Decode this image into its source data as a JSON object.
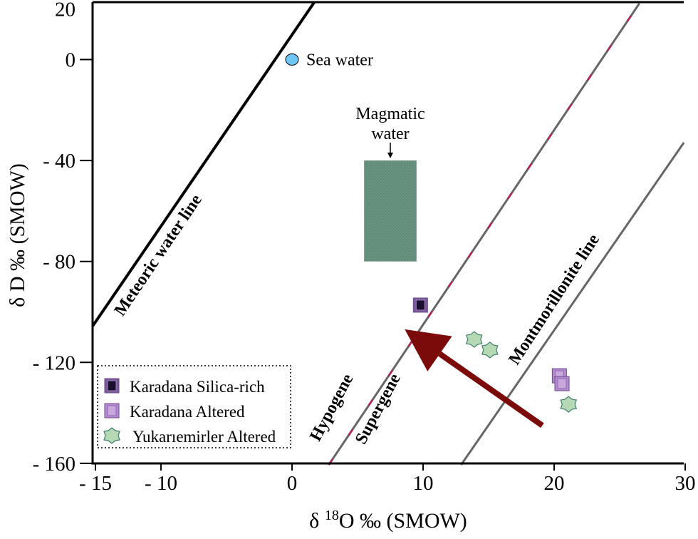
{
  "chart_data": {
    "type": "scatter",
    "xlabel": "δ ¹⁸O ‰ (SMOW)",
    "ylabel": "δ D ‰ (SMOW)",
    "xlabel_parts": {
      "pre": "δ ",
      "sup": "18",
      "post": "O ‰ (SMOW)"
    },
    "xlim": [
      -15,
      30
    ],
    "ylim": [
      -160,
      22.7
    ],
    "xticks": [
      {
        "v": -15,
        "label": "- 15"
      },
      {
        "v": -10,
        "label": "- 10"
      },
      {
        "v": 0,
        "label": "0"
      },
      {
        "v": 10,
        "label": "10"
      },
      {
        "v": 20,
        "label": "20"
      },
      {
        "v": 30,
        "label": "30"
      }
    ],
    "yticks": [
      {
        "v": 20,
        "label": "20"
      },
      {
        "v": 0,
        "label": "0"
      },
      {
        "v": -40,
        "label": "- 40"
      },
      {
        "v": -80,
        "label": "- 80"
      },
      {
        "v": -120,
        "label": "- 120"
      },
      {
        "v": -160,
        "label": "- 160"
      }
    ],
    "lines": [
      {
        "name": "Meteoric water line",
        "points": [
          [
            -15.2,
            -105.5
          ],
          [
            1.7,
            22.7
          ]
        ],
        "color": "#000000"
      },
      {
        "name": "Hypogene / Supergene",
        "labels": [
          "Hypogene",
          "Supergene"
        ],
        "points": [
          [
            2.8,
            -160.6
          ],
          [
            26.5,
            22.2
          ]
        ],
        "color": "#666666",
        "dash_color": "#c2185b"
      },
      {
        "name": "Montmorillonite line",
        "points": [
          [
            12.9,
            -160.6
          ],
          [
            29.9,
            -32.9
          ]
        ],
        "color": "#666666"
      }
    ],
    "sea_water": {
      "label": "Sea water",
      "x": 0,
      "y": 0,
      "color": "#6ec6f5"
    },
    "magmatic_water": {
      "label_line1": "Magmatic",
      "label_line2": "water",
      "x": [
        5.5,
        9.5
      ],
      "y": [
        -80,
        -40
      ],
      "color": "#5f8a78"
    },
    "arrow": {
      "from": [
        19.1,
        -145
      ],
      "to": [
        8.6,
        -106.9
      ],
      "color": "#7b0a0a"
    },
    "series": [
      {
        "name": "Karadana Silica-rich",
        "marker": "square-dark",
        "color": "#1a0f2e",
        "points": [
          [
            9.8,
            -97.3
          ]
        ]
      },
      {
        "name": "Karadana Altered",
        "marker": "square-light",
        "color": "#c9a8de",
        "points": [
          [
            20.4,
            -125.3
          ],
          [
            20.6,
            -128.4
          ]
        ]
      },
      {
        "name": "Yukarıemirler Altered",
        "marker": "blob",
        "color": "#b5d9b5",
        "points": [
          [
            13.9,
            -110.9
          ],
          [
            15.1,
            -115.1
          ],
          [
            21.1,
            -136.6
          ]
        ]
      }
    ],
    "legend": "bottom-left",
    "grid": false
  }
}
